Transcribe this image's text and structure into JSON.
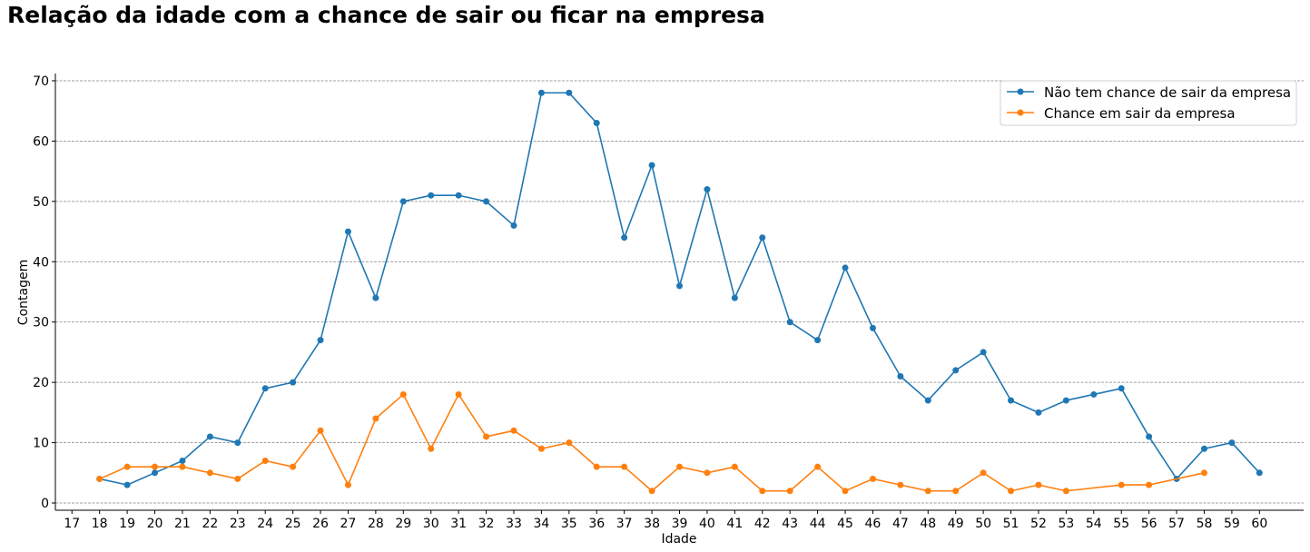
{
  "chart_data": {
    "type": "line",
    "title": "Relação da idade com a chance de sair ou ficar na empresa",
    "xlabel": "Idade",
    "ylabel": "Contagem",
    "x_ticks": [
      17,
      18,
      19,
      20,
      21,
      22,
      23,
      24,
      25,
      26,
      27,
      28,
      29,
      30,
      31,
      32,
      33,
      34,
      35,
      36,
      37,
      38,
      39,
      40,
      41,
      42,
      43,
      44,
      45,
      46,
      47,
      48,
      49,
      50,
      51,
      52,
      53,
      54,
      55,
      56,
      57,
      58,
      59,
      60
    ],
    "y_ticks": [
      0,
      10,
      20,
      30,
      40,
      50,
      60,
      70
    ],
    "xlim": [
      16.4,
      61.6
    ],
    "ylim": [
      -1.2,
      71.2
    ],
    "grid": "horizontal dashed",
    "legend_position": "top-right",
    "series": [
      {
        "name": "Não tem chance de sair da empresa",
        "color": "#1f77b4",
        "x": [
          18,
          19,
          20,
          21,
          22,
          23,
          24,
          25,
          26,
          27,
          28,
          29,
          30,
          31,
          32,
          33,
          34,
          35,
          36,
          37,
          38,
          39,
          40,
          41,
          42,
          43,
          44,
          45,
          46,
          47,
          48,
          49,
          50,
          51,
          52,
          53,
          54,
          55,
          56,
          57,
          58,
          59,
          60
        ],
        "y": [
          4,
          3,
          5,
          7,
          11,
          10,
          19,
          20,
          27,
          45,
          34,
          50,
          51,
          51,
          50,
          46,
          68,
          68,
          63,
          44,
          56,
          36,
          52,
          34,
          44,
          30,
          27,
          39,
          29,
          21,
          17,
          22,
          25,
          17,
          15,
          17,
          18,
          19,
          11,
          4,
          9,
          10,
          5
        ]
      },
      {
        "name": "Chance em sair da empresa",
        "color": "#ff7f0e",
        "x": [
          18,
          19,
          20,
          21,
          22,
          23,
          24,
          25,
          26,
          27,
          28,
          29,
          30,
          31,
          32,
          33,
          34,
          35,
          36,
          37,
          38,
          39,
          40,
          41,
          42,
          43,
          44,
          45,
          46,
          47,
          48,
          49,
          50,
          51,
          52,
          53,
          55,
          56,
          58
        ],
        "y": [
          4,
          6,
          6,
          6,
          5,
          4,
          7,
          6,
          12,
          3,
          14,
          18,
          9,
          18,
          11,
          12,
          9,
          10,
          6,
          6,
          2,
          6,
          5,
          6,
          2,
          2,
          6,
          2,
          4,
          3,
          2,
          2,
          5,
          2,
          3,
          2,
          3,
          3,
          5
        ]
      }
    ]
  }
}
